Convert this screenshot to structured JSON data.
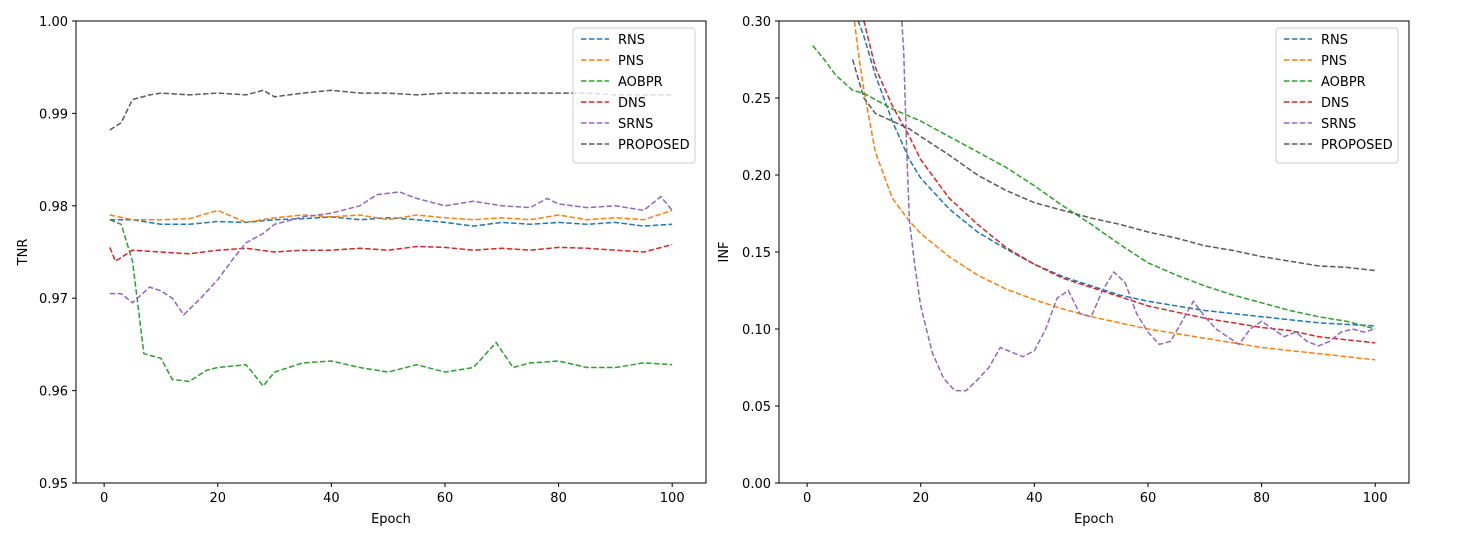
{
  "chart_data": [
    {
      "type": "line",
      "title": "",
      "xlabel": "Epoch",
      "ylabel": "TNR",
      "xlim": [
        -4.95,
        105.95
      ],
      "ylim": [
        0.95,
        1.0
      ],
      "xticks": [
        0,
        20,
        40,
        60,
        80,
        100
      ],
      "yticks": [
        0.95,
        0.96,
        0.97,
        0.98,
        0.99,
        1.0
      ],
      "xtick_labels": [
        "0",
        "20",
        "40",
        "60",
        "80",
        "100"
      ],
      "ytick_labels": [
        "0.95",
        "0.96",
        "0.97",
        "0.98",
        "0.99",
        "1.00"
      ],
      "grid": false,
      "legend_position": "top-right",
      "series": [
        {
          "name": "RNS",
          "color": "#1f77b4",
          "x": [
            1,
            5,
            10,
            15,
            20,
            25,
            30,
            35,
            40,
            45,
            50,
            55,
            60,
            65,
            70,
            75,
            80,
            85,
            90,
            95,
            100
          ],
          "values": [
            0.9785,
            0.9785,
            0.978,
            0.978,
            0.9783,
            0.9782,
            0.9785,
            0.9786,
            0.9788,
            0.9785,
            0.9787,
            0.9785,
            0.9782,
            0.9778,
            0.9782,
            0.978,
            0.9782,
            0.978,
            0.9782,
            0.9778,
            0.978
          ]
        },
        {
          "name": "PNS",
          "color": "#ff7f0e",
          "x": [
            1,
            5,
            10,
            15,
            20,
            25,
            30,
            35,
            40,
            45,
            50,
            55,
            60,
            65,
            70,
            75,
            80,
            85,
            90,
            95,
            100
          ],
          "values": [
            0.979,
            0.9785,
            0.9785,
            0.9786,
            0.9795,
            0.9782,
            0.9787,
            0.979,
            0.9788,
            0.979,
            0.9785,
            0.979,
            0.9787,
            0.9785,
            0.9787,
            0.9785,
            0.979,
            0.9785,
            0.9787,
            0.9785,
            0.9795
          ]
        },
        {
          "name": "AOBPR",
          "color": "#2ca02c",
          "x": [
            1,
            3,
            5,
            7,
            10,
            12,
            15,
            18,
            20,
            25,
            28,
            30,
            35,
            40,
            45,
            50,
            55,
            60,
            65,
            69,
            72,
            75,
            80,
            85,
            90,
            95,
            100
          ],
          "values": [
            0.9785,
            0.978,
            0.974,
            0.964,
            0.9635,
            0.9612,
            0.961,
            0.9622,
            0.9625,
            0.9628,
            0.9605,
            0.962,
            0.963,
            0.9632,
            0.9625,
            0.962,
            0.9628,
            0.962,
            0.9625,
            0.9652,
            0.9625,
            0.963,
            0.9632,
            0.9625,
            0.9625,
            0.963,
            0.9628
          ]
        },
        {
          "name": "DNS",
          "color": "#d62728",
          "x": [
            1,
            2,
            5,
            10,
            15,
            20,
            25,
            30,
            35,
            40,
            45,
            50,
            55,
            60,
            65,
            70,
            75,
            80,
            85,
            90,
            95,
            100
          ],
          "values": [
            0.9755,
            0.974,
            0.9752,
            0.975,
            0.9748,
            0.9752,
            0.9754,
            0.975,
            0.9752,
            0.9752,
            0.9754,
            0.9752,
            0.9756,
            0.9755,
            0.9752,
            0.9754,
            0.9752,
            0.9755,
            0.9754,
            0.9752,
            0.975,
            0.9758
          ]
        },
        {
          "name": "SRNS",
          "color": "#9467bd",
          "x": [
            1,
            3,
            5,
            8,
            10,
            12,
            14,
            17,
            20,
            23,
            25,
            28,
            30,
            35,
            40,
            45,
            48,
            52,
            55,
            60,
            65,
            70,
            75,
            78,
            80,
            85,
            90,
            95,
            98,
            100
          ],
          "values": [
            0.9705,
            0.9705,
            0.9695,
            0.9712,
            0.9708,
            0.97,
            0.9682,
            0.97,
            0.972,
            0.9745,
            0.976,
            0.977,
            0.978,
            0.9788,
            0.9792,
            0.98,
            0.9812,
            0.9815,
            0.9808,
            0.98,
            0.9805,
            0.98,
            0.9798,
            0.9808,
            0.9802,
            0.9798,
            0.98,
            0.9795,
            0.981,
            0.9795
          ]
        },
        {
          "name": "PROPOSED",
          "color": "#5a5a5a",
          "x": [
            1,
            3,
            5,
            8,
            10,
            15,
            20,
            25,
            28,
            30,
            35,
            40,
            45,
            50,
            55,
            60,
            65,
            70,
            75,
            80,
            85,
            90,
            95,
            100
          ],
          "values": [
            0.9882,
            0.989,
            0.9915,
            0.992,
            0.9922,
            0.992,
            0.9922,
            0.992,
            0.9925,
            0.9918,
            0.9922,
            0.9925,
            0.9922,
            0.9922,
            0.992,
            0.9922,
            0.9922,
            0.9922,
            0.9922,
            0.9922,
            0.9922,
            0.992,
            0.992,
            0.992
          ]
        }
      ]
    },
    {
      "type": "line",
      "title": "",
      "xlabel": "Epoch",
      "ylabel": "INF",
      "xlim": [
        -4.95,
        105.95
      ],
      "ylim": [
        0.0,
        0.3
      ],
      "xticks": [
        0,
        20,
        40,
        60,
        80,
        100
      ],
      "yticks": [
        0.0,
        0.05,
        0.1,
        0.15,
        0.2,
        0.25,
        0.3
      ],
      "xtick_labels": [
        "0",
        "20",
        "40",
        "60",
        "80",
        "100"
      ],
      "ytick_labels": [
        "0.00",
        "0.05",
        "0.10",
        "0.15",
        "0.20",
        "0.25",
        "0.30"
      ],
      "grid": false,
      "legend_position": "top-right",
      "series": [
        {
          "name": "RNS",
          "color": "#1f77b4",
          "x": [
            8,
            10,
            12,
            15,
            18,
            20,
            25,
            30,
            35,
            40,
            45,
            50,
            55,
            60,
            65,
            70,
            75,
            80,
            85,
            90,
            95,
            100
          ],
          "values": [
            0.31,
            0.29,
            0.265,
            0.235,
            0.21,
            0.198,
            0.178,
            0.163,
            0.152,
            0.142,
            0.134,
            0.128,
            0.122,
            0.118,
            0.115,
            0.112,
            0.11,
            0.108,
            0.106,
            0.104,
            0.103,
            0.102
          ]
        },
        {
          "name": "PNS",
          "color": "#ff7f0e",
          "x": [
            8,
            9,
            10,
            12,
            15,
            18,
            20,
            25,
            30,
            35,
            40,
            45,
            50,
            55,
            60,
            65,
            70,
            75,
            80,
            85,
            90,
            95,
            100
          ],
          "values": [
            0.31,
            0.28,
            0.255,
            0.215,
            0.185,
            0.17,
            0.162,
            0.147,
            0.135,
            0.126,
            0.119,
            0.113,
            0.108,
            0.104,
            0.1,
            0.097,
            0.094,
            0.091,
            0.088,
            0.086,
            0.084,
            0.082,
            0.08
          ]
        },
        {
          "name": "AOBPR",
          "color": "#2ca02c",
          "x": [
            1,
            3,
            5,
            8,
            10,
            15,
            20,
            25,
            30,
            35,
            40,
            45,
            50,
            55,
            60,
            65,
            70,
            75,
            80,
            85,
            90,
            95,
            100
          ],
          "values": [
            0.284,
            0.275,
            0.265,
            0.255,
            0.253,
            0.243,
            0.235,
            0.225,
            0.215,
            0.205,
            0.193,
            0.18,
            0.168,
            0.155,
            0.143,
            0.135,
            0.128,
            0.122,
            0.117,
            0.112,
            0.108,
            0.105,
            0.1
          ]
        },
        {
          "name": "DNS",
          "color": "#d62728",
          "x": [
            9,
            10,
            12,
            15,
            18,
            20,
            25,
            30,
            35,
            40,
            45,
            50,
            55,
            60,
            65,
            70,
            75,
            80,
            85,
            90,
            95,
            100
          ],
          "values": [
            0.31,
            0.3,
            0.27,
            0.245,
            0.225,
            0.21,
            0.185,
            0.168,
            0.153,
            0.142,
            0.133,
            0.127,
            0.121,
            0.115,
            0.111,
            0.107,
            0.104,
            0.101,
            0.099,
            0.095,
            0.093,
            0.091
          ]
        },
        {
          "name": "SRNS",
          "color": "#9467bd",
          "x": [
            16.5,
            17,
            17.5,
            18,
            19,
            20,
            22,
            24,
            26,
            28,
            30,
            32,
            34,
            36,
            38,
            40,
            42,
            44,
            46,
            48,
            50,
            52,
            54,
            56,
            58,
            60,
            62,
            64,
            66,
            68,
            70,
            72,
            74,
            76,
            78,
            80,
            82,
            84,
            86,
            88,
            90,
            92,
            94,
            96,
            98,
            100
          ],
          "values": [
            0.31,
            0.28,
            0.22,
            0.17,
            0.14,
            0.115,
            0.085,
            0.068,
            0.06,
            0.06,
            0.067,
            0.075,
            0.088,
            0.085,
            0.082,
            0.086,
            0.1,
            0.12,
            0.125,
            0.11,
            0.108,
            0.125,
            0.137,
            0.13,
            0.11,
            0.098,
            0.09,
            0.092,
            0.105,
            0.118,
            0.108,
            0.1,
            0.095,
            0.09,
            0.1,
            0.105,
            0.1,
            0.095,
            0.098,
            0.092,
            0.089,
            0.092,
            0.098,
            0.1,
            0.098,
            0.1
          ]
        },
        {
          "name": "PROPOSED",
          "color": "#5a5a5a",
          "x": [
            8,
            10,
            12,
            15,
            18,
            20,
            25,
            30,
            35,
            40,
            45,
            50,
            55,
            60,
            65,
            70,
            75,
            80,
            85,
            90,
            95,
            100
          ],
          "values": [
            0.275,
            0.25,
            0.24,
            0.235,
            0.23,
            0.225,
            0.213,
            0.2,
            0.19,
            0.182,
            0.177,
            0.172,
            0.168,
            0.163,
            0.159,
            0.154,
            0.151,
            0.147,
            0.144,
            0.141,
            0.14,
            0.138
          ]
        }
      ]
    }
  ]
}
